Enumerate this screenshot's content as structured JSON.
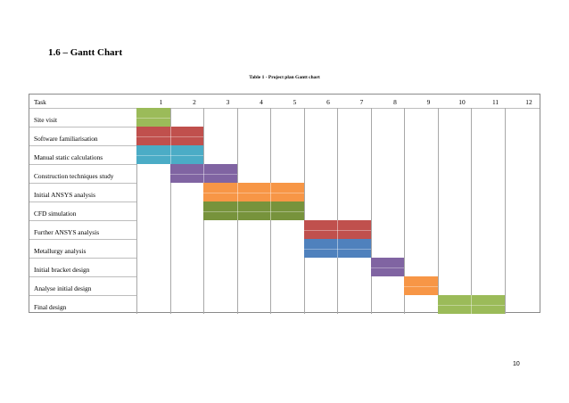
{
  "heading": "1.6 – Gantt Chart",
  "caption": "Table 1 - Project plan Gantt chart",
  "page_number": "10",
  "gantt": {
    "task_header": "Task",
    "periods": [
      "1",
      "2",
      "3",
      "4",
      "5",
      "6",
      "7",
      "8",
      "9",
      "10",
      "11",
      "12"
    ],
    "tasks": [
      {
        "name": "Site visit",
        "start": 1,
        "end": 1,
        "color": "#9bbb59"
      },
      {
        "name": "Software familiarisation",
        "start": 1,
        "end": 2,
        "color": "#c0504d"
      },
      {
        "name": "Manual static calculations",
        "start": 1,
        "end": 2,
        "color": "#4bacc6"
      },
      {
        "name": "Construction techniques study",
        "start": 2,
        "end": 3,
        "color": "#8064a2"
      },
      {
        "name": "Initial ANSYS analysis",
        "start": 3,
        "end": 5,
        "color": "#f79646"
      },
      {
        "name": "CFD simulation",
        "start": 3,
        "end": 5,
        "color": "#77933c"
      },
      {
        "name": "Further ANSYS analysis",
        "start": 6,
        "end": 7,
        "color": "#c0504d"
      },
      {
        "name": "Metallurgy analysis",
        "start": 6,
        "end": 7,
        "color": "#4f81bd"
      },
      {
        "name": "Initial bracket design",
        "start": 8,
        "end": 8,
        "color": "#8064a2"
      },
      {
        "name": "Analyse initial design",
        "start": 9,
        "end": 9,
        "color": "#f79646"
      },
      {
        "name": "Final design",
        "start": 10,
        "end": 11,
        "color": "#9bbb59"
      }
    ]
  }
}
